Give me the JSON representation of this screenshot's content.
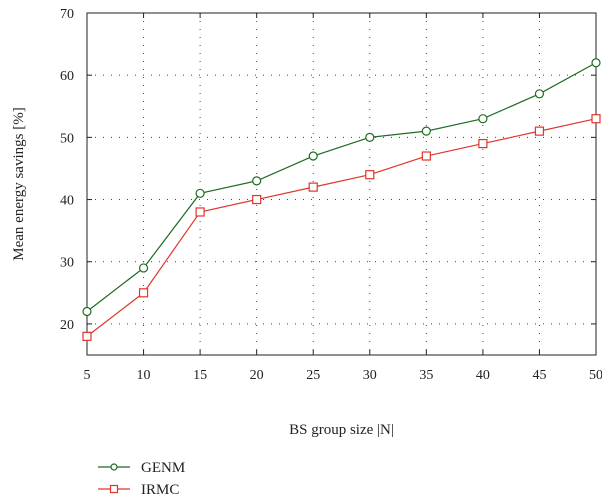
{
  "chart_data": {
    "type": "line",
    "x": [
      5,
      10,
      15,
      20,
      25,
      30,
      35,
      40,
      45,
      50
    ],
    "series": [
      {
        "name": "GENM",
        "values": [
          22,
          29,
          41,
          43,
          47,
          50,
          51,
          53,
          57,
          62
        ],
        "color": "#1e6b22",
        "marker": "circle"
      },
      {
        "name": "IRMC",
        "values": [
          18,
          25,
          38,
          40,
          42,
          44,
          47,
          49,
          51,
          53
        ],
        "color": "#e0352b",
        "marker": "square"
      }
    ],
    "xlabel": "BS group size |N|",
    "ylabel": "Mean energy savings [%]",
    "xlim": [
      5,
      50
    ],
    "ylim": [
      15,
      70
    ],
    "xticks": [
      5,
      10,
      15,
      20,
      25,
      30,
      35,
      40,
      45,
      50
    ],
    "yticks": [
      20,
      30,
      40,
      50,
      60,
      70
    ],
    "grid": true,
    "legend": "bottom-left"
  }
}
